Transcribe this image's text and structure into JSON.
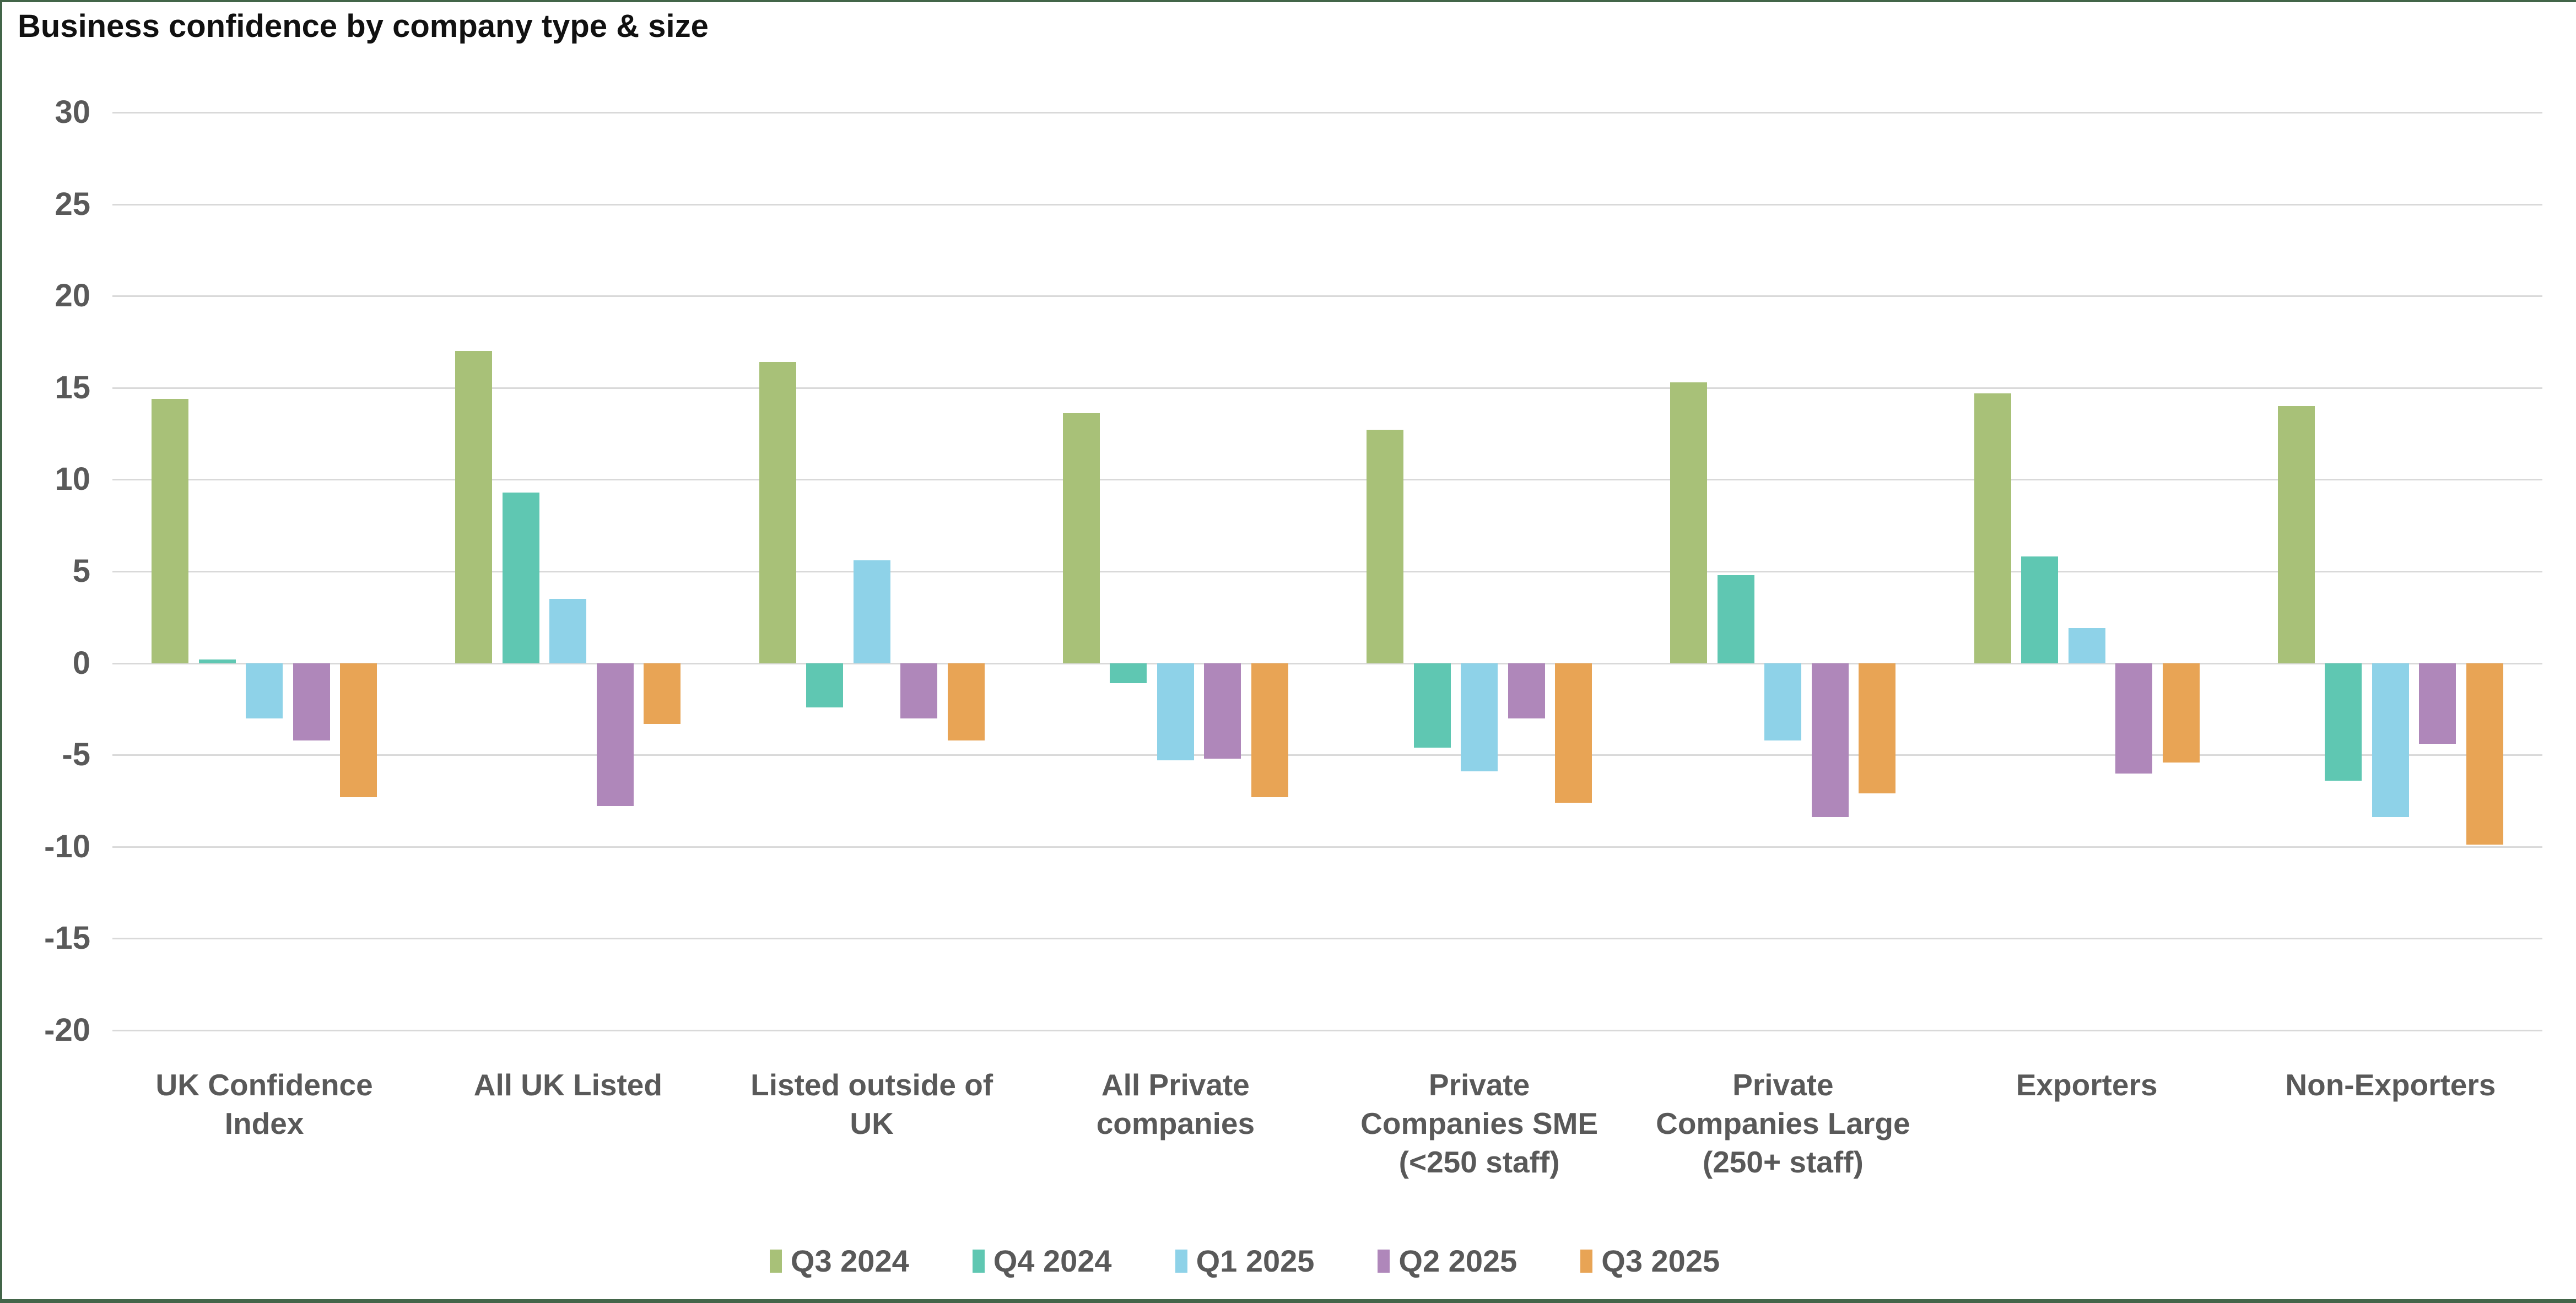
{
  "title": "Business confidence by company type & size",
  "colors": {
    "title_text": "#111111",
    "axis_text": "#595959",
    "gridline": "#d9d9d9",
    "frame_border": "#436549",
    "background": "#ffffff"
  },
  "chart_data": {
    "type": "bar",
    "title": "Business confidence by company type & size",
    "categories": [
      "UK Confidence\nIndex",
      "All UK Listed",
      "Listed outside of\nUK",
      "All Private\ncompanies",
      "Private\nCompanies SME\n(<250 staff)",
      "Private\nCompanies Large\n(250+ staff)",
      "Exporters",
      "Non-Exporters"
    ],
    "series": [
      {
        "name": "Q3 2024",
        "color": "#a8c178",
        "values": [
          14.4,
          17.0,
          16.4,
          13.6,
          12.7,
          15.3,
          14.7,
          14.0
        ]
      },
      {
        "name": "Q4 2024",
        "color": "#5fc7b2",
        "values": [
          0.2,
          9.3,
          -2.4,
          -1.1,
          -4.6,
          4.8,
          5.8,
          -6.4
        ]
      },
      {
        "name": "Q1 2025",
        "color": "#8ed2e8",
        "values": [
          -3.0,
          3.5,
          5.6,
          -5.3,
          -5.9,
          -4.2,
          1.9,
          -8.4
        ]
      },
      {
        "name": "Q2 2025",
        "color": "#af87ba",
        "values": [
          -4.2,
          -7.8,
          -3.0,
          -5.2,
          -3.0,
          -8.4,
          -6.0,
          -4.4
        ]
      },
      {
        "name": "Q3 2025",
        "color": "#e8a455",
        "values": [
          -7.3,
          -3.3,
          -4.2,
          -7.3,
          -7.6,
          -7.1,
          -5.4,
          -9.9
        ]
      }
    ],
    "ylim": [
      -20,
      30
    ],
    "ytick_step": 5,
    "ytick_labels": [
      "30",
      "25",
      "20",
      "15",
      "10",
      "5",
      "0",
      "-5",
      "-10",
      "-15",
      "-20"
    ],
    "grid": true,
    "legend_position": "bottom",
    "legend": [
      "Q3 2024",
      "Q4 2024",
      "Q1 2025",
      "Q2 2025",
      "Q3 2025"
    ]
  }
}
